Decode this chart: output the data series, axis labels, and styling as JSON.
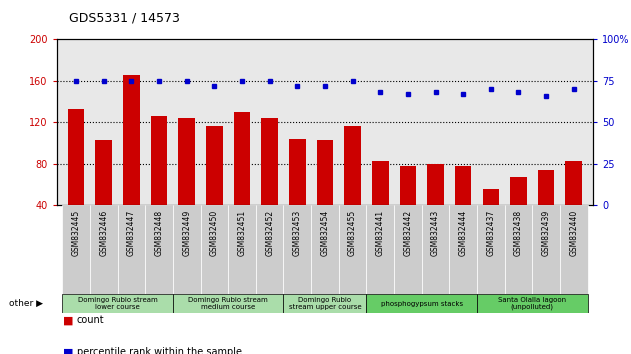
{
  "title": "GDS5331 / 14573",
  "samples": [
    "GSM832445",
    "GSM832446",
    "GSM832447",
    "GSM832448",
    "GSM832449",
    "GSM832450",
    "GSM832451",
    "GSM832452",
    "GSM832453",
    "GSM832454",
    "GSM832455",
    "GSM832441",
    "GSM832442",
    "GSM832443",
    "GSM832444",
    "GSM832437",
    "GSM832438",
    "GSM832439",
    "GSM832440"
  ],
  "counts": [
    133,
    103,
    165,
    126,
    124,
    116,
    130,
    124,
    104,
    103,
    116,
    83,
    78,
    80,
    78,
    56,
    67,
    74,
    83
  ],
  "percentiles": [
    75,
    75,
    75,
    75,
    75,
    72,
    75,
    75,
    72,
    72,
    75,
    68,
    67,
    68,
    67,
    70,
    68,
    66,
    70
  ],
  "groups": [
    {
      "label": "Domingo Rubio stream\nlower course",
      "start": 0,
      "end": 4,
      "color": "#aaddaa"
    },
    {
      "label": "Domingo Rubio stream\nmedium course",
      "start": 4,
      "end": 8,
      "color": "#aaddaa"
    },
    {
      "label": "Domingo Rubio\nstream upper course",
      "start": 8,
      "end": 11,
      "color": "#aaddaa"
    },
    {
      "label": "phosphogypsum stacks",
      "start": 11,
      "end": 15,
      "color": "#66cc66"
    },
    {
      "label": "Santa Olalla lagoon\n(unpolluted)",
      "start": 15,
      "end": 19,
      "color": "#66cc66"
    }
  ],
  "ylim_left": [
    40,
    200
  ],
  "ylim_right": [
    0,
    100
  ],
  "yticks_left": [
    40,
    80,
    120,
    160,
    200
  ],
  "yticks_right": [
    0,
    25,
    50,
    75,
    100
  ],
  "bar_color": "#cc0000",
  "dot_color": "#0000cc",
  "bar_width": 0.6,
  "bg_plot": "#e8e8e8",
  "xtick_bg": "#cccccc",
  "n": 19
}
